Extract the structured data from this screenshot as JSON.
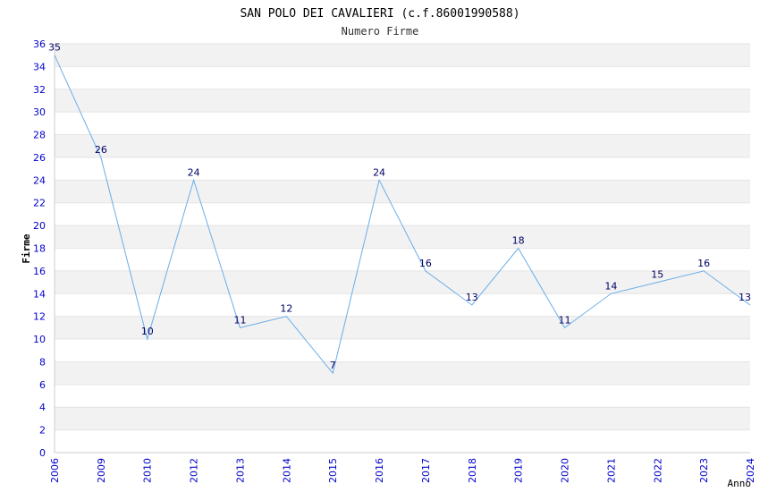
{
  "chart_data": {
    "type": "line",
    "title": "SAN POLO DEI CAVALIERI (c.f.86001990588)",
    "subtitle": "Numero Firme",
    "xlabel": "Anno",
    "ylabel": "Firme",
    "x": [
      "2006",
      "2009",
      "2010",
      "2012",
      "2013",
      "2014",
      "2015",
      "2016",
      "2017",
      "2018",
      "2019",
      "2020",
      "2021",
      "2022",
      "2023",
      "2024"
    ],
    "series": [
      {
        "values": [
          35,
          26,
          10,
          24,
          11,
          12,
          7,
          24,
          16,
          13,
          18,
          11,
          14,
          15,
          16,
          13
        ]
      }
    ],
    "ylim": [
      0,
      36
    ],
    "yticks": [
      0,
      2,
      4,
      6,
      8,
      10,
      12,
      14,
      16,
      18,
      20,
      22,
      24,
      26,
      28,
      30,
      32,
      34,
      36
    ],
    "grid": true,
    "line_color": "#6aaee8",
    "band_color": "#f2f2f2",
    "tick_color": "#0000cc",
    "label_color": "#000066"
  }
}
